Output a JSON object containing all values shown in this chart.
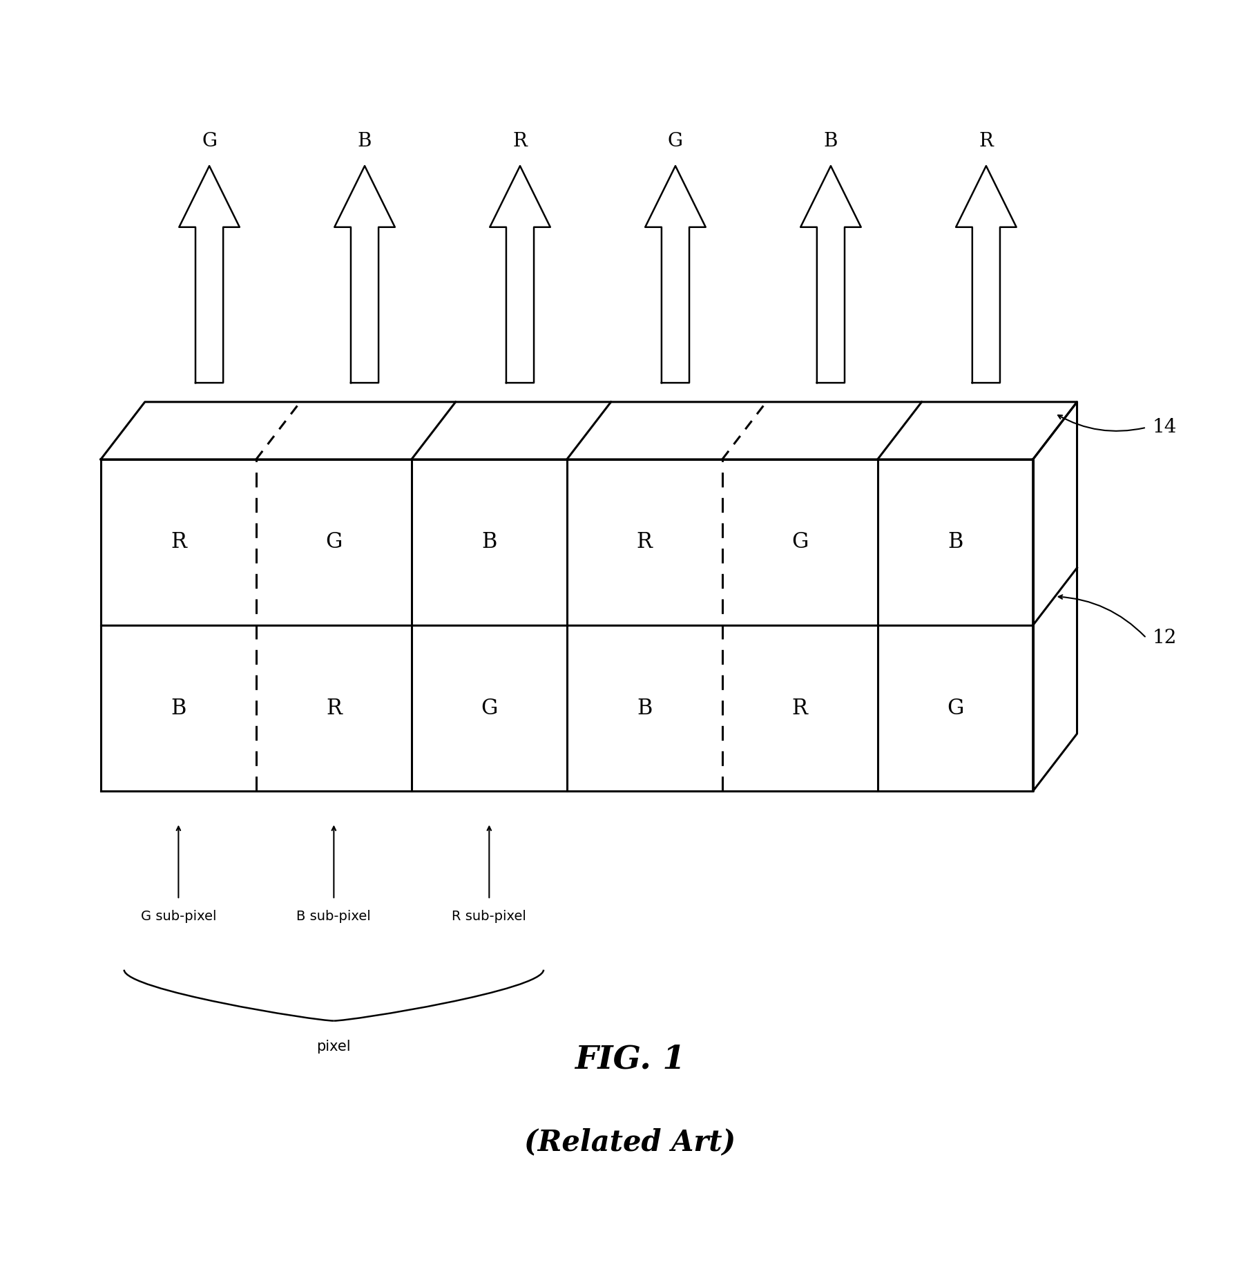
{
  "bg_color": "#ffffff",
  "fig_width": 18.24,
  "fig_height": 18.47,
  "title_line1": "FIG. 1",
  "title_line2": "(Related Art)",
  "label_14": "14",
  "label_12": "12",
  "top_labels": [
    "G",
    "B",
    "R",
    "G",
    "B",
    "R"
  ],
  "row1_labels": [
    "R",
    "G",
    "B",
    "R",
    "G",
    "B"
  ],
  "row2_labels": [
    "B",
    "R",
    "G",
    "B",
    "R",
    "G"
  ],
  "bottom_labels": [
    "G sub-pixel",
    "B sub-pixel",
    "R sub-pixel"
  ],
  "pixel_label": "pixel",
  "dashed_col_indices": [
    1,
    4
  ],
  "line_color": "#000000",
  "line_width": 2.2
}
